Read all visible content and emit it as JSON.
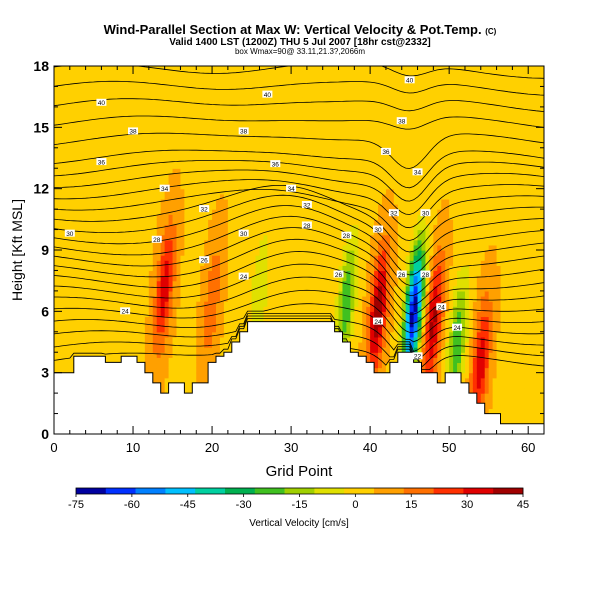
{
  "title": "Wind-Parallel Section at Max W: Vertical Velocity & Pot.Temp.",
  "title_mark": "(C)",
  "subtitle": "Valid 1400 LST (1200Z) THU 5 Jul 2007 [18hr cst@2332]",
  "subtitle2": "box Wmax=90@ 33.11,21.3?,2066m",
  "chart_data": {
    "type": "heatmap",
    "xlabel": "Grid Point",
    "ylabel": "Height [Kft MSL]",
    "xlim": [
      0,
      62
    ],
    "ylim": [
      0,
      18
    ],
    "xticks": [
      0,
      10,
      20,
      30,
      40,
      50,
      60
    ],
    "yticks": [
      0,
      3,
      6,
      9,
      12,
      15,
      18
    ],
    "colorbar": {
      "label": "Vertical Velocity [cm/s]",
      "range": [
        -75,
        45
      ],
      "ticks": [
        -75,
        -60,
        -45,
        -30,
        -15,
        0,
        15,
        30,
        45
      ],
      "colors": [
        "#0000a0",
        "#0030ff",
        "#0080ff",
        "#00c0ff",
        "#00d0a0",
        "#00b050",
        "#40c020",
        "#a0d000",
        "#e0e000",
        "#ffd000",
        "#ffa000",
        "#ff7000",
        "#ff3000",
        "#e00000",
        "#a00000"
      ]
    },
    "terrain_height": [
      3.0,
      3.0,
      3.0,
      3.8,
      3.8,
      3.8,
      3.8,
      3.5,
      3.5,
      3.8,
      3.8,
      3.5,
      3.0,
      2.5,
      2.0,
      2.5,
      2.5,
      2.0,
      2.5,
      2.5,
      3.5,
      3.8,
      4.0,
      4.5,
      5.0,
      5.5,
      5.5,
      5.5,
      5.5,
      5.5,
      5.5,
      5.5,
      5.5,
      5.5,
      5.5,
      5.5,
      5.0,
      4.5,
      4.0,
      3.8,
      3.5,
      3.0,
      3.0,
      3.5,
      4.0,
      4.0,
      3.5,
      3.0,
      3.0,
      2.5,
      3.0,
      3.0,
      2.5,
      2.0,
      1.5,
      1.0,
      1.0,
      0.5,
      0.5,
      0.5,
      0.5,
      0.5,
      0.5
    ],
    "w_features": [
      {
        "x": 14,
        "z": 7.2,
        "w": 30
      },
      {
        "x": 20,
        "z": 6.5,
        "w": 15
      },
      {
        "x": 26,
        "z": 7.0,
        "w": -15
      },
      {
        "x": 37,
        "z": 6.5,
        "w": -30
      },
      {
        "x": 41,
        "z": 6.0,
        "w": 40
      },
      {
        "x": 45.5,
        "z": 6.0,
        "w": -75
      },
      {
        "x": 48,
        "z": 5.5,
        "w": 35
      },
      {
        "x": 51,
        "z": 4.5,
        "w": -30
      },
      {
        "x": 54,
        "z": 3.5,
        "w": 30
      }
    ],
    "isentrope_labels": [
      {
        "text": "40",
        "x": 6,
        "z": 16.2
      },
      {
        "text": "40",
        "x": 27,
        "z": 16.6
      },
      {
        "text": "40",
        "x": 45,
        "z": 17.3
      },
      {
        "text": "38",
        "x": 10,
        "z": 14.8
      },
      {
        "text": "38",
        "x": 24,
        "z": 14.8
      },
      {
        "text": "38",
        "x": 44,
        "z": 15.3
      },
      {
        "text": "36",
        "x": 6,
        "z": 13.3
      },
      {
        "text": "36",
        "x": 28,
        "z": 13.2
      },
      {
        "text": "36",
        "x": 42,
        "z": 13.8
      },
      {
        "text": "34",
        "x": 14,
        "z": 12.0
      },
      {
        "text": "34",
        "x": 30,
        "z": 12.0
      },
      {
        "text": "34",
        "x": 46,
        "z": 12.8
      },
      {
        "text": "32",
        "x": 19,
        "z": 11.0
      },
      {
        "text": "32",
        "x": 32,
        "z": 11.2
      },
      {
        "text": "32",
        "x": 43,
        "z": 10.8
      },
      {
        "text": "30",
        "x": 2,
        "z": 9.8
      },
      {
        "text": "30",
        "x": 24,
        "z": 9.8
      },
      {
        "text": "30",
        "x": 41,
        "z": 10.0
      },
      {
        "text": "30",
        "x": 47,
        "z": 10.8
      },
      {
        "text": "28",
        "x": 13,
        "z": 9.5
      },
      {
        "text": "28",
        "x": 32,
        "z": 10.2
      },
      {
        "text": "28",
        "x": 37,
        "z": 9.7
      },
      {
        "text": "28",
        "x": 47,
        "z": 7.8
      },
      {
        "text": "26",
        "x": 19,
        "z": 8.5
      },
      {
        "text": "26",
        "x": 36,
        "z": 7.8
      },
      {
        "text": "26",
        "x": 44,
        "z": 7.8
      },
      {
        "text": "24",
        "x": 9,
        "z": 6.0
      },
      {
        "text": "24",
        "x": 24,
        "z": 7.7
      },
      {
        "text": "24",
        "x": 41,
        "z": 5.5
      },
      {
        "text": "24",
        "x": 49,
        "z": 6.2
      },
      {
        "text": "24",
        "x": 51,
        "z": 5.2
      },
      {
        "text": "22",
        "x": 46,
        "z": 3.8
      }
    ]
  }
}
